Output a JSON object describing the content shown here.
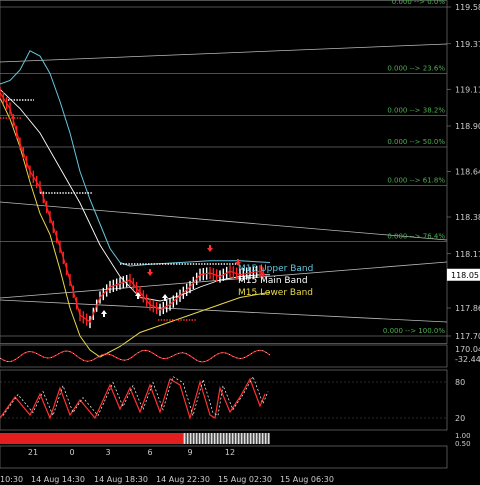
{
  "chart_data": {
    "type": "line",
    "price_axis": {
      "ticks": [
        "119.58",
        "119.37",
        "119.11",
        "118.90",
        "118.64",
        "118.38",
        "118.17",
        "117.86",
        "117.70"
      ],
      "current_price": "118.05"
    },
    "fibonacci_levels": [
      {
        "label": "0.000 --> 0.0%",
        "price": 119.58
      },
      {
        "label": "0.000 --> 23.6%",
        "price": 119.2
      },
      {
        "label": "0.000 --> 38.2%",
        "price": 118.96
      },
      {
        "label": "0.000 --> 50.0%",
        "price": 118.78
      },
      {
        "label": "0.000 --> 61.8%",
        "price": 118.56
      },
      {
        "label": "0.000 --> 76.4%",
        "price": 118.24
      },
      {
        "label": "0.000 --> 100.0%",
        "price": 117.7
      }
    ],
    "legend": [
      {
        "name": "M15 Upper Band",
        "color": "#66c6e0"
      },
      {
        "name": "M15 Main Band",
        "color": "#ffffff"
      },
      {
        "name": "M15 Lower Band",
        "color": "#e8d84a"
      }
    ],
    "series": [
      {
        "name": "M15 Upper Band",
        "color": "#66c6e0",
        "x": [
          0,
          10,
          20,
          30,
          40,
          50,
          60,
          70,
          80,
          90,
          100,
          110,
          120,
          130,
          150,
          180,
          210,
          240,
          270
        ],
        "values": [
          119.14,
          119.16,
          119.22,
          119.33,
          119.3,
          119.2,
          119.04,
          118.86,
          118.64,
          118.48,
          118.34,
          118.2,
          118.12,
          118.1,
          118.11,
          118.12,
          118.13,
          118.13,
          118.12
        ]
      },
      {
        "name": "M15 Main Band",
        "color": "#ffffff",
        "x": [
          0,
          20,
          40,
          60,
          80,
          100,
          120,
          140,
          160,
          180,
          200,
          220,
          240,
          260,
          270
        ],
        "values": [
          119.11,
          119.0,
          118.86,
          118.66,
          118.46,
          118.22,
          118.04,
          117.92,
          117.9,
          117.93,
          117.98,
          118.02,
          118.04,
          118.05,
          118.05
        ]
      },
      {
        "name": "M15 Lower Band",
        "color": "#e8d84a",
        "x": [
          0,
          10,
          20,
          30,
          40,
          50,
          60,
          70,
          80,
          90,
          100,
          120,
          140,
          160,
          180,
          200,
          220,
          240,
          260,
          270
        ],
        "values": [
          119.06,
          118.94,
          118.78,
          118.58,
          118.4,
          118.28,
          118.08,
          117.86,
          117.7,
          117.62,
          117.58,
          117.64,
          117.72,
          117.76,
          117.8,
          117.84,
          117.88,
          117.92,
          117.94,
          117.95
        ]
      },
      {
        "name": "Price",
        "color": "#ff2020",
        "x": [
          0,
          10,
          20,
          30,
          40,
          50,
          60,
          70,
          80,
          90,
          100,
          110,
          120,
          130,
          140,
          150,
          160,
          170,
          180,
          190,
          200,
          210,
          220,
          230,
          240,
          250,
          260,
          265
        ],
        "values": [
          119.09,
          119.0,
          118.8,
          118.64,
          118.55,
          118.38,
          118.21,
          118.02,
          117.82,
          117.78,
          117.92,
          117.98,
          118.0,
          118.02,
          117.95,
          117.88,
          117.85,
          117.88,
          117.93,
          117.98,
          118.05,
          118.06,
          118.04,
          118.07,
          118.05,
          118.06,
          118.07,
          118.05
        ]
      }
    ],
    "time_axis": {
      "row1": [
        "21",
        "0",
        "3",
        "6",
        "9",
        "12"
      ],
      "row2": [
        "10:30",
        "14 Aug 14:30",
        "14 Aug 18:30",
        "14 Aug 22:30",
        "15 Aug 02:30",
        "15 Aug 06:30"
      ]
    },
    "indicator_panels": {
      "cci_label": "170.04",
      "cci_label2": "-32.44",
      "stoch_levels": [
        "80",
        "20"
      ],
      "stoch_x": [
        0,
        15,
        30,
        40,
        50,
        60,
        70,
        80,
        95,
        110,
        120,
        130,
        140,
        150,
        160,
        170,
        180,
        190,
        200,
        210,
        215,
        220,
        230,
        240,
        250,
        260,
        265
      ],
      "stoch_values": [
        20,
        55,
        25,
        60,
        20,
        70,
        25,
        50,
        20,
        75,
        35,
        70,
        30,
        75,
        30,
        85,
        75,
        20,
        80,
        25,
        20,
        70,
        30,
        55,
        85,
        40,
        60
      ],
      "bar_labels": [
        "1.00",
        "0.50"
      ],
      "bar_split_fraction": 0.68
    }
  }
}
